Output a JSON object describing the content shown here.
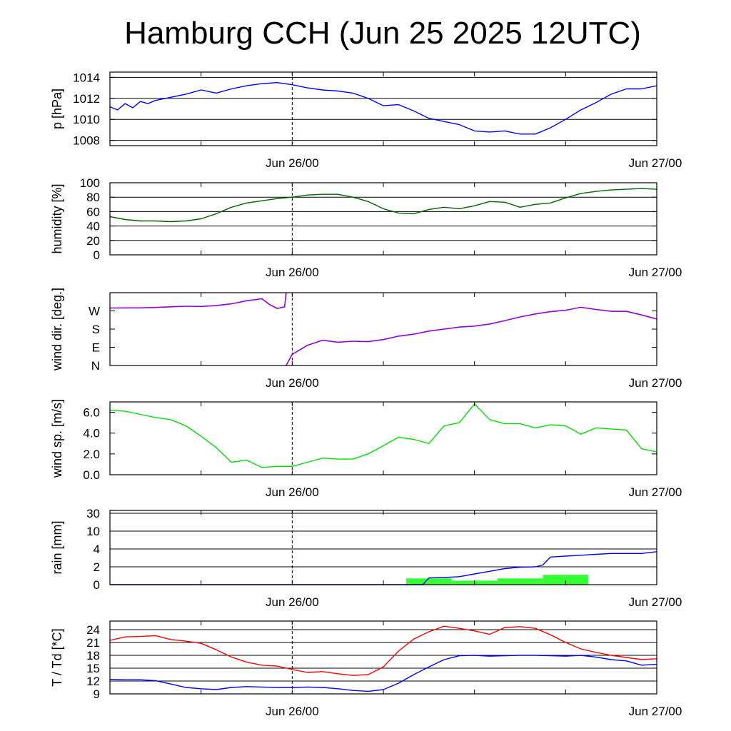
{
  "title": "Hamburg CCH (Jun 25 2025 12UTC)",
  "x_tick_labels": [
    "Jun 26/00",
    "Jun 27/00"
  ],
  "chart_data": [
    {
      "type": "line",
      "ylabel": "p [hPa]",
      "ylim": [
        1007.5,
        1014.5
      ],
      "yticks": [
        1008,
        1010,
        1012,
        1014
      ],
      "x_unit": "hours since Jun 25 12UTC",
      "xlim": [
        0,
        36
      ],
      "grid": "horizontal",
      "color": "#0000ff",
      "x": [
        0,
        0.5,
        1,
        1.5,
        2,
        2.5,
        3,
        4,
        5,
        6,
        7,
        8,
        9,
        10,
        11,
        12,
        13,
        14,
        15,
        16,
        17,
        18,
        19,
        20,
        21,
        22,
        23,
        24,
        25,
        26,
        27,
        28,
        29,
        30,
        31,
        32,
        33,
        34,
        35,
        36
      ],
      "values": [
        1011.2,
        1010.9,
        1011.5,
        1011.1,
        1011.7,
        1011.5,
        1011.8,
        1012.1,
        1012.4,
        1012.8,
        1012.5,
        1012.9,
        1013.2,
        1013.4,
        1013.5,
        1013.3,
        1013.0,
        1012.8,
        1012.7,
        1012.5,
        1012.0,
        1011.3,
        1011.4,
        1010.8,
        1010.1,
        1009.8,
        1009.5,
        1008.9,
        1008.8,
        1008.9,
        1008.6,
        1008.6,
        1009.2,
        1010.0,
        1010.9,
        1011.6,
        1012.4,
        1012.9,
        1012.9,
        1013.2
      ]
    },
    {
      "type": "line",
      "ylabel": "humidity [%]",
      "ylim": [
        0,
        100
      ],
      "yticks": [
        0,
        20,
        40,
        60,
        80,
        100
      ],
      "xlim": [
        0,
        36
      ],
      "grid": "horizontal",
      "color": "#006400",
      "x": [
        0,
        1,
        2,
        3,
        4,
        5,
        6,
        7,
        8,
        9,
        10,
        11,
        12,
        13,
        14,
        15,
        16,
        17,
        18,
        19,
        20,
        21,
        22,
        23,
        24,
        25,
        26,
        27,
        28,
        29,
        30,
        31,
        32,
        33,
        34,
        35,
        36
      ],
      "values": [
        53,
        49,
        47,
        47,
        46,
        47,
        50,
        57,
        66,
        72,
        75,
        78,
        80,
        83,
        84,
        84,
        80,
        74,
        64,
        58,
        57,
        63,
        66,
        64,
        68,
        74,
        73,
        66,
        70,
        72,
        79,
        85,
        88,
        90,
        91,
        92,
        91
      ]
    },
    {
      "type": "line",
      "ylabel": "wind dir. [deg.]",
      "ylim": [
        0,
        360
      ],
      "ytick_labels": [
        "N",
        "E",
        "S",
        "W"
      ],
      "ytick_values": [
        0,
        90,
        180,
        270
      ],
      "xlim": [
        0,
        36
      ],
      "grid": "none",
      "color": "#9400d3",
      "x": [
        0,
        1,
        2,
        3,
        4,
        5,
        6,
        7,
        8,
        9,
        10,
        10.5,
        11,
        11.5,
        11.6,
        12,
        13,
        14,
        15,
        16,
        17,
        18,
        19,
        20,
        21,
        22,
        23,
        24,
        25,
        26,
        27,
        28,
        29,
        30,
        31,
        32,
        33,
        34,
        35,
        36
      ],
      "values": [
        284,
        285,
        285,
        287,
        290,
        293,
        292,
        296,
        305,
        320,
        330,
        302,
        282,
        290,
        360,
        55,
        100,
        125,
        115,
        120,
        118,
        128,
        145,
        155,
        170,
        180,
        190,
        195,
        205,
        222,
        240,
        255,
        266,
        273,
        288,
        277,
        268,
        268,
        250,
        230
      ]
    },
    {
      "type": "line",
      "ylabel": "wind sp. [m/s]",
      "ylim": [
        0,
        7
      ],
      "yticks": [
        0.0,
        2.0,
        4.0,
        6.0
      ],
      "xlim": [
        0,
        36
      ],
      "grid": "none",
      "color": "#00e000",
      "x": [
        0,
        1,
        2,
        3,
        4,
        5,
        6,
        7,
        8,
        9,
        10,
        11,
        12,
        13,
        14,
        15,
        16,
        17,
        18,
        19,
        20,
        21,
        22,
        23,
        24,
        25,
        26,
        27,
        28,
        29,
        30,
        31,
        32,
        33,
        34,
        35,
        36
      ],
      "values": [
        6.2,
        6.1,
        5.8,
        5.5,
        5.3,
        4.7,
        3.7,
        2.6,
        1.2,
        1.4,
        0.7,
        0.8,
        0.8,
        1.2,
        1.6,
        1.5,
        1.5,
        2.0,
        2.8,
        3.6,
        3.4,
        3.0,
        4.7,
        5.0,
        6.8,
        5.3,
        4.9,
        4.9,
        4.5,
        4.8,
        4.7,
        3.9,
        4.5,
        4.4,
        4.3,
        2.5,
        2.2
      ]
    },
    {
      "type": "bar",
      "ylabel": "rain [mm]",
      "ytick_labels": [
        "0",
        "2",
        "4",
        "10",
        "30"
      ],
      "ytick_values": [
        0,
        2,
        4,
        10,
        30
      ],
      "xlim": [
        0,
        36
      ],
      "grid": "horizontal",
      "bar_color": "#33ff33",
      "line_color": "#0000ff",
      "bars": [
        {
          "start": 19.5,
          "end": 22.5,
          "value": 0.7
        },
        {
          "start": 22.5,
          "end": 25.5,
          "value": 0.45
        },
        {
          "start": 25.5,
          "end": 28.5,
          "value": 0.7
        },
        {
          "start": 28.5,
          "end": 31.5,
          "value": 1.1
        }
      ],
      "cumulative_x": [
        0,
        20.6,
        21,
        22,
        23,
        24,
        25,
        26,
        27,
        28,
        28.5,
        29,
        30,
        31,
        32,
        33,
        34,
        35,
        36
      ],
      "cumulative_values": [
        0,
        0,
        0.75,
        0.8,
        0.9,
        1.2,
        1.5,
        1.8,
        1.95,
        2.0,
        2.2,
        3.1,
        3.2,
        3.3,
        3.4,
        3.5,
        3.5,
        3.5,
        3.7
      ]
    },
    {
      "type": "line",
      "ylabel": "T / Td [*C]",
      "ylim": [
        9,
        26
      ],
      "yticks": [
        9,
        12,
        15,
        18,
        21,
        24
      ],
      "xlim": [
        0,
        36
      ],
      "grid": "horizontal",
      "series": [
        {
          "color": "#ff0000",
          "x": [
            0,
            1,
            2,
            3,
            4,
            5,
            6,
            7,
            8,
            9,
            10,
            11,
            12,
            13,
            14,
            15,
            16,
            17,
            18,
            19,
            20,
            21,
            22,
            23,
            24,
            25,
            26,
            27,
            28,
            29,
            30,
            31,
            32,
            33,
            34,
            35,
            36
          ],
          "values": [
            21.5,
            22.3,
            22.4,
            22.6,
            21.7,
            21.3,
            20.8,
            19.3,
            17.6,
            16.4,
            15.7,
            15.5,
            14.7,
            14.0,
            14.2,
            13.7,
            13.3,
            13.5,
            15.3,
            19.0,
            21.8,
            23.5,
            24.8,
            24.3,
            23.7,
            22.9,
            24.5,
            24.7,
            24.3,
            22.8,
            21.0,
            19.5,
            18.7,
            18.0,
            17.5,
            17.0,
            17.2
          ]
        },
        {
          "color": "#0000ff",
          "x": [
            0,
            1,
            2,
            3,
            4,
            5,
            6,
            7,
            8,
            9,
            10,
            11,
            12,
            13,
            14,
            15,
            16,
            17,
            18,
            19,
            20,
            21,
            22,
            23,
            24,
            25,
            26,
            27,
            28,
            29,
            30,
            31,
            32,
            33,
            34,
            35,
            36
          ],
          "values": [
            12.4,
            12.3,
            12.3,
            12.1,
            11.3,
            10.5,
            10.2,
            10.0,
            10.5,
            10.7,
            10.6,
            10.5,
            10.5,
            10.6,
            10.5,
            10.2,
            9.8,
            9.6,
            10.0,
            11.5,
            13.5,
            15.3,
            17.0,
            17.9,
            18.0,
            17.8,
            17.9,
            18.0,
            18.0,
            17.9,
            17.8,
            18.0,
            17.6,
            17.0,
            16.7,
            15.7,
            15.9
          ]
        }
      ]
    }
  ]
}
